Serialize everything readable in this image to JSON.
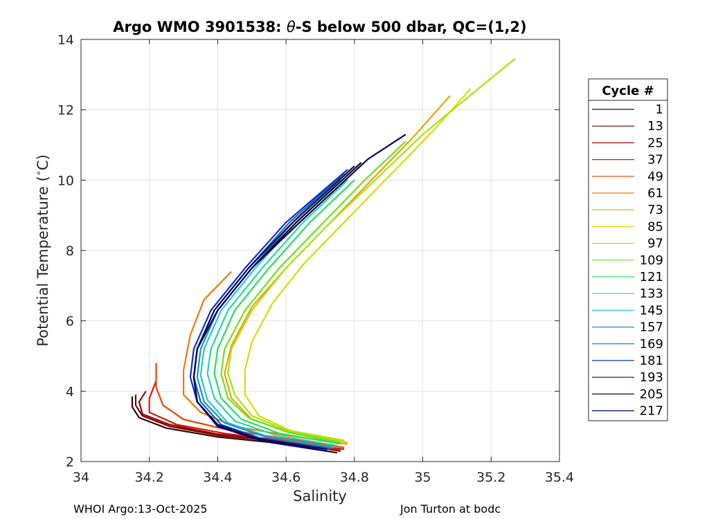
{
  "chart_data": {
    "type": "line",
    "title_prefix": "Argo WMO 3901538: ",
    "title_theta": "θ",
    "title_suffix": "-S below 500 dbar,  QC=(1,2)",
    "xlabel": "Salinity",
    "ylabel": "Potential Temperature (",
    "ylabel_unit": "∘",
    "ylabel_end": "C)",
    "xlim": [
      34,
      35.4
    ],
    "ylim": [
      2,
      14
    ],
    "xticks": [
      "34",
      "34.2",
      "34.4",
      "34.6",
      "34.8",
      "35",
      "35.2",
      "35.4"
    ],
    "yticks": [
      "2",
      "4",
      "6",
      "8",
      "10",
      "12",
      "14"
    ],
    "grid": true,
    "legend_title": "Cycle #",
    "legend_placement": "outside-right",
    "series": [
      {
        "name": "1",
        "color": "#3a0000",
        "points": [
          [
            34.75,
            2.25
          ],
          [
            34.55,
            2.55
          ],
          [
            34.4,
            2.7
          ],
          [
            34.25,
            2.95
          ],
          [
            34.17,
            3.25
          ],
          [
            34.15,
            3.55
          ],
          [
            34.15,
            3.85
          ]
        ]
      },
      {
        "name": "13",
        "color": "#6b0000",
        "points": [
          [
            34.76,
            2.3
          ],
          [
            34.55,
            2.6
          ],
          [
            34.4,
            2.75
          ],
          [
            34.26,
            3.0
          ],
          [
            34.18,
            3.3
          ],
          [
            34.16,
            3.6
          ],
          [
            34.16,
            3.9
          ]
        ]
      },
      {
        "name": "25",
        "color": "#a00000",
        "points": [
          [
            34.76,
            2.35
          ],
          [
            34.56,
            2.6
          ],
          [
            34.4,
            2.78
          ],
          [
            34.26,
            3.05
          ],
          [
            34.18,
            3.35
          ],
          [
            34.17,
            3.7
          ],
          [
            34.19,
            4.0
          ]
        ]
      },
      {
        "name": "37",
        "color": "#d41a00",
        "points": [
          [
            34.77,
            2.35
          ],
          [
            34.57,
            2.62
          ],
          [
            34.42,
            2.8
          ],
          [
            34.28,
            3.05
          ],
          [
            34.2,
            3.4
          ],
          [
            34.2,
            3.8
          ],
          [
            34.22,
            4.3
          ]
        ]
      },
      {
        "name": "49",
        "color": "#f04000",
        "points": [
          [
            34.77,
            2.4
          ],
          [
            34.58,
            2.68
          ],
          [
            34.43,
            2.9
          ],
          [
            34.3,
            3.2
          ],
          [
            34.24,
            3.6
          ],
          [
            34.22,
            4.1
          ],
          [
            34.22,
            4.8
          ]
        ]
      },
      {
        "name": "61",
        "color": "#f07800",
        "points": [
          [
            34.78,
            2.5
          ],
          [
            34.6,
            2.75
          ],
          [
            34.45,
            3.0
          ],
          [
            34.35,
            3.4
          ],
          [
            34.3,
            3.9
          ],
          [
            34.3,
            4.6
          ],
          [
            34.32,
            5.6
          ],
          [
            34.36,
            6.6
          ],
          [
            34.44,
            7.4
          ]
        ]
      },
      {
        "name": "73",
        "color": "#e8a400",
        "points": [
          [
            34.78,
            2.5
          ],
          [
            34.62,
            2.8
          ],
          [
            34.5,
            3.2
          ],
          [
            34.44,
            3.8
          ],
          [
            34.42,
            4.5
          ],
          [
            34.44,
            5.3
          ],
          [
            34.5,
            6.4
          ],
          [
            34.6,
            7.5
          ],
          [
            34.72,
            8.7
          ],
          [
            34.85,
            10.0
          ],
          [
            34.97,
            11.2
          ],
          [
            35.08,
            12.4
          ]
        ]
      },
      {
        "name": "85",
        "color": "#e0d800",
        "points": [
          [
            34.78,
            2.55
          ],
          [
            34.62,
            2.85
          ],
          [
            34.52,
            3.3
          ],
          [
            34.48,
            3.9
          ],
          [
            34.48,
            4.6
          ],
          [
            34.5,
            5.4
          ],
          [
            34.56,
            6.5
          ],
          [
            34.65,
            7.6
          ],
          [
            34.77,
            8.8
          ],
          [
            34.9,
            10.1
          ],
          [
            35.03,
            11.4
          ],
          [
            35.14,
            12.6
          ]
        ]
      },
      {
        "name": "97",
        "color": "#a6e600",
        "points": [
          [
            34.77,
            2.6
          ],
          [
            34.6,
            2.9
          ],
          [
            34.5,
            3.3
          ],
          [
            34.45,
            3.9
          ],
          [
            34.43,
            4.5
          ],
          [
            34.44,
            5.2
          ],
          [
            34.5,
            6.3
          ],
          [
            34.6,
            7.5
          ],
          [
            34.72,
            8.7
          ],
          [
            34.86,
            10.0
          ],
          [
            35.0,
            11.3
          ],
          [
            35.15,
            12.5
          ],
          [
            35.27,
            13.45
          ]
        ]
      },
      {
        "name": "109",
        "color": "#60e620",
        "points": [
          [
            34.76,
            2.55
          ],
          [
            34.6,
            2.85
          ],
          [
            34.49,
            3.25
          ],
          [
            34.43,
            3.8
          ],
          [
            34.41,
            4.5
          ],
          [
            34.42,
            5.2
          ],
          [
            34.48,
            6.3
          ],
          [
            34.58,
            7.5
          ],
          [
            34.7,
            8.7
          ],
          [
            34.83,
            10.0
          ],
          [
            34.95,
            11.1
          ]
        ]
      },
      {
        "name": "121",
        "color": "#20e060",
        "points": [
          [
            34.76,
            2.5
          ],
          [
            34.58,
            2.8
          ],
          [
            34.47,
            3.2
          ],
          [
            34.41,
            3.8
          ],
          [
            34.39,
            4.5
          ],
          [
            34.4,
            5.2
          ],
          [
            34.45,
            6.3
          ],
          [
            34.55,
            7.5
          ],
          [
            34.67,
            8.8
          ],
          [
            34.8,
            10.0
          ]
        ]
      },
      {
        "name": "133",
        "color": "#20d8a8",
        "points": [
          [
            34.75,
            2.45
          ],
          [
            34.57,
            2.75
          ],
          [
            34.45,
            3.15
          ],
          [
            34.39,
            3.8
          ],
          [
            34.37,
            4.5
          ],
          [
            34.38,
            5.2
          ],
          [
            34.43,
            6.3
          ],
          [
            34.53,
            7.5
          ],
          [
            34.65,
            8.8
          ],
          [
            34.78,
            10.0
          ]
        ]
      },
      {
        "name": "145",
        "color": "#20c8d8",
        "points": [
          [
            34.74,
            2.4
          ],
          [
            34.55,
            2.7
          ],
          [
            34.43,
            3.1
          ],
          [
            34.37,
            3.75
          ],
          [
            34.35,
            4.45
          ],
          [
            34.36,
            5.2
          ],
          [
            34.41,
            6.3
          ],
          [
            34.51,
            7.5
          ],
          [
            34.63,
            8.8
          ],
          [
            34.76,
            10.0
          ]
        ]
      },
      {
        "name": "157",
        "color": "#1890c8",
        "points": [
          [
            34.73,
            2.4
          ],
          [
            34.54,
            2.7
          ],
          [
            34.42,
            3.1
          ],
          [
            34.36,
            3.7
          ],
          [
            34.34,
            4.4
          ],
          [
            34.35,
            5.2
          ],
          [
            34.4,
            6.3
          ],
          [
            34.5,
            7.5
          ],
          [
            34.62,
            8.8
          ],
          [
            34.76,
            10.1
          ]
        ]
      },
      {
        "name": "169",
        "color": "#1060d0",
        "points": [
          [
            34.73,
            2.35
          ],
          [
            34.53,
            2.65
          ],
          [
            34.41,
            3.05
          ],
          [
            34.35,
            3.7
          ],
          [
            34.33,
            4.4
          ],
          [
            34.34,
            5.2
          ],
          [
            34.39,
            6.3
          ],
          [
            34.49,
            7.5
          ],
          [
            34.61,
            8.8
          ],
          [
            34.77,
            10.2
          ]
        ]
      },
      {
        "name": "181",
        "color": "#1030b0",
        "points": [
          [
            34.72,
            2.35
          ],
          [
            34.52,
            2.65
          ],
          [
            34.4,
            3.05
          ],
          [
            34.34,
            3.7
          ],
          [
            34.32,
            4.4
          ],
          [
            34.33,
            5.2
          ],
          [
            34.38,
            6.3
          ],
          [
            34.48,
            7.5
          ],
          [
            34.6,
            8.8
          ],
          [
            34.78,
            10.3
          ]
        ]
      },
      {
        "name": "193",
        "color": "#000a60",
        "points": [
          [
            34.72,
            2.35
          ],
          [
            34.52,
            2.65
          ],
          [
            34.4,
            3.05
          ],
          [
            34.34,
            3.7
          ],
          [
            34.33,
            4.4
          ],
          [
            34.34,
            5.2
          ],
          [
            34.39,
            6.3
          ],
          [
            34.49,
            7.5
          ],
          [
            34.62,
            8.8
          ],
          [
            34.8,
            10.4
          ]
        ]
      },
      {
        "name": "205",
        "color": "#200008",
        "points": [
          [
            34.72,
            2.3
          ],
          [
            34.52,
            2.62
          ],
          [
            34.4,
            3.0
          ],
          [
            34.34,
            3.7
          ],
          [
            34.33,
            4.4
          ],
          [
            34.34,
            5.2
          ],
          [
            34.4,
            6.3
          ],
          [
            34.5,
            7.5
          ],
          [
            34.63,
            8.8
          ],
          [
            34.82,
            10.5
          ]
        ]
      },
      {
        "name": "217",
        "color": "#000070",
        "points": [
          [
            34.72,
            2.3
          ],
          [
            34.52,
            2.62
          ],
          [
            34.4,
            3.0
          ],
          [
            34.34,
            3.7
          ],
          [
            34.33,
            4.4
          ],
          [
            34.34,
            5.2
          ],
          [
            34.4,
            6.3
          ],
          [
            34.5,
            7.5
          ],
          [
            34.64,
            8.8
          ],
          [
            34.84,
            10.6
          ],
          [
            34.95,
            11.3
          ]
        ]
      }
    ]
  },
  "footer": {
    "left": "WHOI Argo:13-Oct-2025",
    "right": "Jon Turton at bodc"
  }
}
